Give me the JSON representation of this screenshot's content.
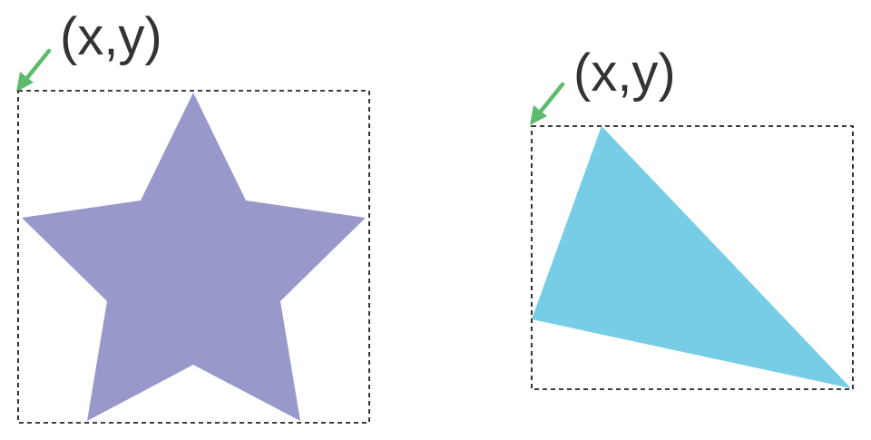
{
  "diagram": {
    "shapes": [
      {
        "name": "star",
        "fill": "#9898cb",
        "origin_label": "(x,y)"
      },
      {
        "name": "triangle",
        "fill": "#76cde5",
        "origin_label": "(x,y)"
      }
    ],
    "colors": {
      "arrow": "#5cbb6c",
      "bounding_box": "#000000",
      "label_text": "#333333"
    },
    "icons": {
      "origin_pointer": "arrow-down-left-icon"
    }
  }
}
